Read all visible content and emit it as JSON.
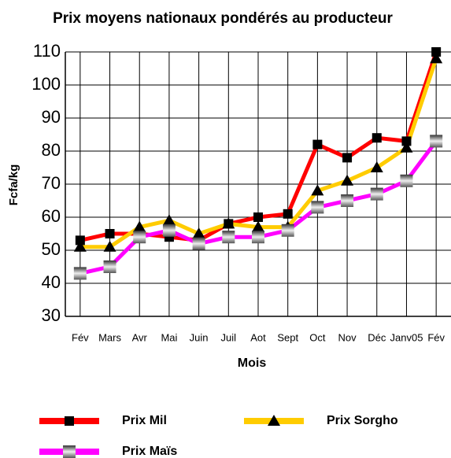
{
  "chart_data": {
    "type": "line",
    "title": "Prix moyens nationaux pondérés au producteur",
    "xlabel": "Mois",
    "ylabel": "Fcfa/kg",
    "categories": [
      "Fév",
      "Mars",
      "Avr",
      "Mai",
      "Juin",
      "Juil",
      "Aot",
      "Sept",
      "Oct",
      "Nov",
      "Déc",
      "Janv05",
      "Fév"
    ],
    "series": [
      {
        "name": "Prix Mil",
        "color": "#ff0000",
        "marker": "square",
        "values": [
          53,
          55,
          55,
          54,
          53,
          58,
          60,
          61,
          82,
          78,
          84,
          83,
          110
        ]
      },
      {
        "name": "Prix Sorgho",
        "color": "#ffcc00",
        "marker": "triangle",
        "values": [
          51,
          51,
          57,
          59,
          55,
          58,
          57,
          57,
          68,
          71,
          75,
          81,
          108
        ]
      },
      {
        "name": "Prix Maïs",
        "color": "#ff00ff",
        "marker": "grey-square",
        "values": [
          43,
          45,
          54,
          56,
          52,
          54,
          54,
          56,
          63,
          65,
          67,
          71,
          83
        ]
      }
    ],
    "ylim": [
      30,
      110
    ],
    "yticks": [
      30,
      40,
      50,
      60,
      70,
      80,
      90,
      100,
      110
    ],
    "grid": true
  }
}
